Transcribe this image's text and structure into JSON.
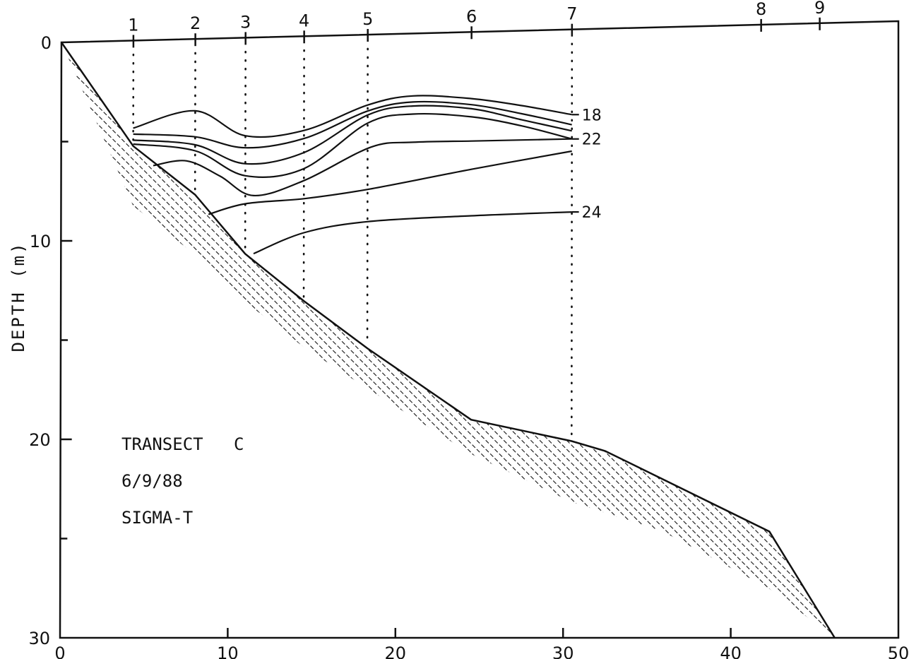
{
  "chart_data": {
    "type": "line",
    "ylabel": "DEPTH (m)",
    "xlim": [
      0,
      50
    ],
    "ylim": [
      30,
      0
    ],
    "x_ticks": [
      0,
      10,
      20,
      30,
      40,
      50
    ],
    "y_ticks": [
      0,
      10,
      20,
      30
    ],
    "stations": [
      {
        "label": "1",
        "x": 4.3
      },
      {
        "label": "2",
        "x": 8.0
      },
      {
        "label": "3",
        "x": 11.0
      },
      {
        "label": "4",
        "x": 14.5
      },
      {
        "label": "5",
        "x": 18.3
      },
      {
        "label": "6",
        "x": 24.5
      },
      {
        "label": "7",
        "x": 30.5
      },
      {
        "label": "8",
        "x": 41.8
      },
      {
        "label": "9",
        "x": 45.3
      }
    ],
    "bottom_profile": {
      "x": [
        0,
        4.3,
        8.0,
        11.0,
        14.5,
        18.3,
        24.5,
        30.5,
        32.5,
        42.3,
        46.2
      ],
      "y": [
        0,
        5.3,
        7.8,
        10.8,
        13.2,
        15.6,
        19.2,
        20.3,
        20.8,
        24.8,
        30.0
      ]
    },
    "annotations": [
      "TRANSECT   C",
      "6/9/88",
      "SIGMA-T"
    ],
    "series": [
      {
        "name": "18",
        "x": [
          4.3,
          8.0,
          11.0,
          14.5,
          18.3,
          21.0,
          24.5,
          27.5,
          30.5
        ],
        "y": [
          4.4,
          3.6,
          4.9,
          4.7,
          3.5,
          3.1,
          3.3,
          3.7,
          4.2
        ]
      },
      {
        "name": "",
        "x": [
          4.3,
          8.0,
          11.0,
          14.5,
          18.3,
          21.0,
          24.5,
          27.5,
          30.5
        ],
        "y": [
          4.7,
          4.9,
          5.5,
          5.1,
          3.8,
          3.4,
          3.6,
          4.1,
          4.7
        ]
      },
      {
        "name": "",
        "x": [
          4.3,
          8.0,
          11.0,
          14.5,
          18.3,
          21.0,
          24.5,
          27.5,
          30.5
        ],
        "y": [
          5.0,
          5.3,
          6.3,
          5.8,
          4.0,
          3.6,
          3.8,
          4.4,
          5.0
        ]
      },
      {
        "name": "22",
        "x": [
          4.3,
          8.0,
          11.0,
          14.5,
          18.3,
          21.0,
          24.5,
          27.5,
          30.5
        ],
        "y": [
          5.2,
          5.6,
          6.9,
          6.6,
          4.4,
          4.0,
          4.2,
          4.7,
          5.4
        ]
      },
      {
        "name": "",
        "x": [
          5.5,
          7.5,
          9.5,
          11.5,
          14.5,
          18.5,
          21.0,
          24.5,
          27.5,
          30.5
        ],
        "y": [
          6.3,
          6.1,
          6.9,
          7.9,
          7.2,
          5.6,
          5.4,
          5.4,
          5.4,
          5.4
        ]
      },
      {
        "name": "",
        "x": [
          8.8,
          11.0,
          14.5,
          18.3,
          24.5,
          30.5
        ],
        "y": [
          8.8,
          8.3,
          8.1,
          7.7,
          6.8,
          6.0
        ]
      },
      {
        "name": "24",
        "x": [
          11.5,
          14.5,
          18.3,
          24.5,
          30.5
        ],
        "y": [
          10.8,
          9.8,
          9.3,
          9.1,
          9.0
        ]
      }
    ]
  }
}
